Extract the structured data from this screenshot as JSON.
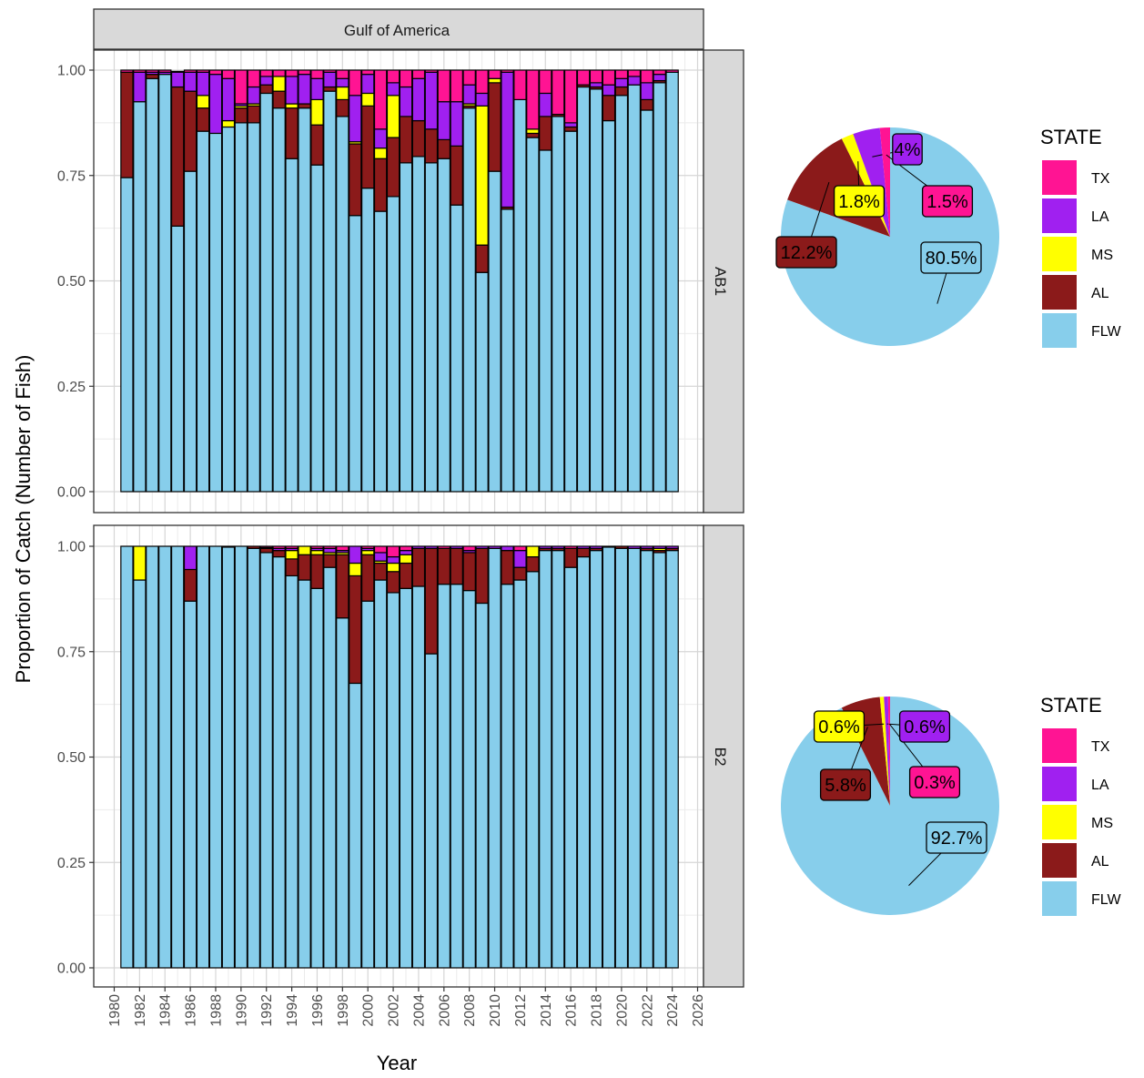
{
  "chart_data": [
    {
      "type": "bar",
      "stacked": true,
      "strip_title": "Gulf of America",
      "ylabel": "Proportion of Catch (Number of Fish)",
      "xlabel": "Year",
      "ylim": [
        0,
        1
      ],
      "xlim": [
        1980,
        2026
      ],
      "y_ticks": [
        "0.00",
        "0.25",
        "0.50",
        "0.75",
        "1.00"
      ],
      "x_ticks": [
        "1980",
        "1982",
        "1984",
        "1986",
        "1988",
        "1990",
        "1992",
        "1994",
        "1996",
        "1998",
        "2000",
        "2002",
        "2004",
        "2006",
        "2008",
        "2010",
        "2012",
        "2014",
        "2016",
        "2018",
        "2020",
        "2022",
        "2024",
        "2026"
      ],
      "state_order": [
        "FLW",
        "AL",
        "MS",
        "LA",
        "TX"
      ],
      "state_colors": {
        "FLW": "#87CEEB",
        "AL": "#8B1A1A",
        "MS": "#FFFF00",
        "LA": "#A020F0",
        "TX": "#FF1493"
      },
      "panels": [
        {
          "facet": "AB1",
          "years": [
            1981,
            1982,
            1983,
            1984,
            1985,
            1986,
            1987,
            1988,
            1989,
            1990,
            1991,
            1992,
            1993,
            1994,
            1995,
            1996,
            1997,
            1998,
            1999,
            2000,
            2001,
            2002,
            2003,
            2004,
            2005,
            2006,
            2007,
            2008,
            2009,
            2010,
            2011,
            2012,
            2013,
            2014,
            2015,
            2016,
            2017,
            2018,
            2019,
            2020,
            2021,
            2022,
            2023,
            2024
          ],
          "values": {
            "FLW": [
              0.745,
              0.925,
              0.98,
              0.99,
              0.63,
              0.76,
              0.855,
              0.85,
              0.865,
              0.875,
              0.875,
              0.945,
              0.91,
              0.79,
              0.91,
              0.775,
              0.95,
              0.89,
              0.655,
              0.72,
              0.665,
              0.7,
              0.78,
              0.795,
              0.78,
              0.79,
              0.68,
              0.91,
              0.52,
              0.76,
              0.67,
              0.93,
              0.84,
              0.81,
              0.89,
              0.855,
              0.96,
              0.955,
              0.88,
              0.94,
              0.965,
              0.905,
              0.97,
              0.995
            ],
            "AL": [
              0.25,
              0.0,
              0.01,
              0.0,
              0.33,
              0.19,
              0.055,
              0.0,
              0.0,
              0.035,
              0.04,
              0.02,
              0.04,
              0.12,
              0.01,
              0.095,
              0.01,
              0.04,
              0.17,
              0.195,
              0.125,
              0.14,
              0.11,
              0.085,
              0.08,
              0.045,
              0.14,
              0.005,
              0.065,
              0.21,
              0.005,
              0.0,
              0.01,
              0.08,
              0.005,
              0.01,
              0.005,
              0.005,
              0.06,
              0.02,
              0.0,
              0.025,
              0.005,
              0.0
            ],
            "MS": [
              0.0,
              0.0,
              0.0,
              0.0,
              0.0,
              0.0,
              0.03,
              0.0,
              0.015,
              0.005,
              0.005,
              0.0,
              0.035,
              0.01,
              0.0,
              0.06,
              0.0,
              0.03,
              0.005,
              0.03,
              0.025,
              0.1,
              0.0,
              0.0,
              0.0,
              0.0,
              0.0,
              0.005,
              0.33,
              0.01,
              0.0,
              0.0,
              0.01,
              0.0,
              0.0,
              0.0,
              0.0,
              0.0,
              0.0,
              0.0,
              0.0,
              0.0,
              0.0,
              0.0
            ],
            "LA": [
              0.0,
              0.07,
              0.005,
              0.005,
              0.035,
              0.045,
              0.055,
              0.14,
              0.1,
              0.005,
              0.04,
              0.02,
              0.0,
              0.065,
              0.07,
              0.05,
              0.035,
              0.02,
              0.11,
              0.045,
              0.045,
              0.03,
              0.07,
              0.1,
              0.135,
              0.09,
              0.105,
              0.045,
              0.03,
              0.0,
              0.32,
              0.0,
              0.0,
              0.055,
              0.0,
              0.01,
              0.0,
              0.01,
              0.025,
              0.02,
              0.02,
              0.04,
              0.015,
              0.0
            ],
            "TX": [
              0.005,
              0.005,
              0.005,
              0.005,
              0.002,
              0.005,
              0.005,
              0.01,
              0.02,
              0.08,
              0.04,
              0.015,
              0.015,
              0.015,
              0.01,
              0.02,
              0.005,
              0.02,
              0.06,
              0.01,
              0.14,
              0.03,
              0.04,
              0.02,
              0.005,
              0.075,
              0.075,
              0.035,
              0.055,
              0.02,
              0.005,
              0.07,
              0.14,
              0.055,
              0.105,
              0.125,
              0.035,
              0.03,
              0.035,
              0.02,
              0.015,
              0.03,
              0.01,
              0.005
            ]
          },
          "pie": {
            "slices": [
              {
                "state": "FLW",
                "pct": 80.5,
                "label": "80.5%"
              },
              {
                "state": "AL",
                "pct": 12.2,
                "label": "12.2%"
              },
              {
                "state": "MS",
                "pct": 1.8,
                "label": "1.8%"
              },
              {
                "state": "LA",
                "pct": 4.0,
                "label": "4%"
              },
              {
                "state": "TX",
                "pct": 1.5,
                "label": "1.5%"
              }
            ]
          }
        },
        {
          "facet": "B2",
          "years": [
            1981,
            1982,
            1983,
            1984,
            1985,
            1986,
            1987,
            1988,
            1989,
            1990,
            1991,
            1992,
            1993,
            1994,
            1995,
            1996,
            1997,
            1998,
            1999,
            2000,
            2001,
            2002,
            2003,
            2004,
            2005,
            2006,
            2007,
            2008,
            2009,
            2010,
            2011,
            2012,
            2013,
            2014,
            2015,
            2016,
            2017,
            2018,
            2019,
            2020,
            2021,
            2022,
            2023,
            2024
          ],
          "values": {
            "FLW": [
              1.0,
              0.92,
              1.0,
              1.0,
              1.0,
              0.87,
              1.0,
              1.0,
              0.998,
              1.0,
              0.995,
              0.985,
              0.975,
              0.93,
              0.92,
              0.9,
              0.95,
              0.83,
              0.675,
              0.87,
              0.92,
              0.89,
              0.9,
              0.905,
              0.745,
              0.91,
              0.91,
              0.895,
              0.865,
              0.995,
              0.91,
              0.92,
              0.94,
              0.99,
              0.99,
              0.95,
              0.975,
              0.99,
              0.998,
              0.995,
              0.995,
              0.99,
              0.985,
              0.99
            ],
            "AL": [
              0.0,
              0.0,
              0.0,
              0.0,
              0.0,
              0.075,
              0.0,
              0.0,
              0.0,
              0.0,
              0.005,
              0.01,
              0.015,
              0.04,
              0.06,
              0.08,
              0.03,
              0.15,
              0.255,
              0.11,
              0.04,
              0.05,
              0.06,
              0.09,
              0.25,
              0.085,
              0.085,
              0.09,
              0.13,
              0.0,
              0.08,
              0.03,
              0.035,
              0.005,
              0.005,
              0.045,
              0.02,
              0.005,
              0.0,
              0.005,
              0.0,
              0.005,
              0.005,
              0.005
            ],
            "MS": [
              0.0,
              0.08,
              0.0,
              0.0,
              0.0,
              0.0,
              0.0,
              0.0,
              0.0,
              0.0,
              0.0,
              0.0,
              0.0,
              0.02,
              0.02,
              0.01,
              0.005,
              0.005,
              0.03,
              0.01,
              0.005,
              0.02,
              0.02,
              0.0,
              0.0,
              0.0,
              0.0,
              0.0,
              0.0,
              0.0,
              0.0,
              0.0,
              0.025,
              0.0,
              0.0,
              0.0,
              0.0,
              0.0,
              0.0,
              0.0,
              0.0,
              0.0,
              0.005,
              0.0
            ],
            "LA": [
              0.0,
              0.0,
              0.0,
              0.0,
              0.0,
              0.055,
              0.0,
              0.0,
              0.0,
              0.0,
              0.0,
              0.002,
              0.005,
              0.005,
              0.0,
              0.005,
              0.01,
              0.005,
              0.04,
              0.005,
              0.02,
              0.015,
              0.01,
              0.005,
              0.005,
              0.0,
              0.005,
              0.005,
              0.005,
              0.005,
              0.01,
              0.04,
              0.0,
              0.005,
              0.005,
              0.0,
              0.005,
              0.005,
              0.0,
              0.0,
              0.005,
              0.005,
              0.005,
              0.005
            ],
            "TX": [
              0.0,
              0.0,
              0.0,
              0.0,
              0.0,
              0.0,
              0.0,
              0.0,
              0.002,
              0.0,
              0.0,
              0.003,
              0.005,
              0.005,
              0.0,
              0.005,
              0.005,
              0.01,
              0.0,
              0.005,
              0.015,
              0.025,
              0.01,
              0.0,
              0.0,
              0.005,
              0.0,
              0.01,
              0.0,
              0.0,
              0.0,
              0.01,
              0.0,
              0.0,
              0.0,
              0.005,
              0.0,
              0.0,
              0.002,
              0.0,
              0.0,
              0.0,
              0.0,
              0.0
            ]
          },
          "pie": {
            "slices": [
              {
                "state": "FLW",
                "pct": 92.7,
                "label": "92.7%"
              },
              {
                "state": "AL",
                "pct": 5.8,
                "label": "5.8%"
              },
              {
                "state": "MS",
                "pct": 0.6,
                "label": "0.6%"
              },
              {
                "state": "LA",
                "pct": 0.6,
                "label": "0.6%"
              },
              {
                "state": "TX",
                "pct": 0.3,
                "label": "0.3%"
              }
            ]
          }
        }
      ],
      "legend": {
        "title": "STATE",
        "items": [
          "TX",
          "LA",
          "MS",
          "AL",
          "FLW"
        ]
      }
    }
  ]
}
